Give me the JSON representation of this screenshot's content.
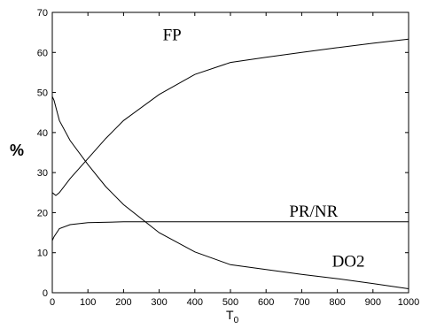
{
  "chart_data": {
    "type": "line",
    "xlabel": "T",
    "xlabel_sub": "0",
    "ylabel": "%",
    "xlim": [
      0,
      1000
    ],
    "ylim": [
      0,
      70
    ],
    "xticks": [
      0,
      100,
      200,
      300,
      400,
      500,
      600,
      700,
      800,
      900,
      1000
    ],
    "yticks": [
      0,
      10,
      20,
      30,
      40,
      50,
      60,
      70
    ],
    "grid": false,
    "series": [
      {
        "name": "FP",
        "x": [
          0,
          10,
          20,
          50,
          100,
          150,
          200,
          300,
          400,
          500,
          600,
          700,
          800,
          900,
          1000
        ],
        "y": [
          25,
          24.3,
          25,
          28.5,
          33.5,
          38.5,
          43,
          49.5,
          54.5,
          57.5,
          58.8,
          60,
          61.2,
          62.3,
          63.3
        ],
        "label_at": [
          310,
          63
        ]
      },
      {
        "name": "PR/NR",
        "x": [
          0,
          5,
          20,
          50,
          100,
          200,
          300,
          500,
          1000
        ],
        "y": [
          13,
          14,
          16,
          17,
          17.5,
          17.7,
          17.7,
          17.7,
          17.7
        ],
        "label_at": [
          665,
          19
        ]
      },
      {
        "name": "DO2",
        "x": [
          0,
          5,
          20,
          50,
          100,
          150,
          200,
          300,
          400,
          500,
          600,
          700,
          800,
          900,
          1000
        ],
        "y": [
          49,
          48,
          43,
          38,
          32,
          26.5,
          22,
          15,
          10.2,
          7,
          5.8,
          4.6,
          3.5,
          2.3,
          1
        ],
        "label_at": [
          785,
          6.5
        ]
      }
    ]
  }
}
